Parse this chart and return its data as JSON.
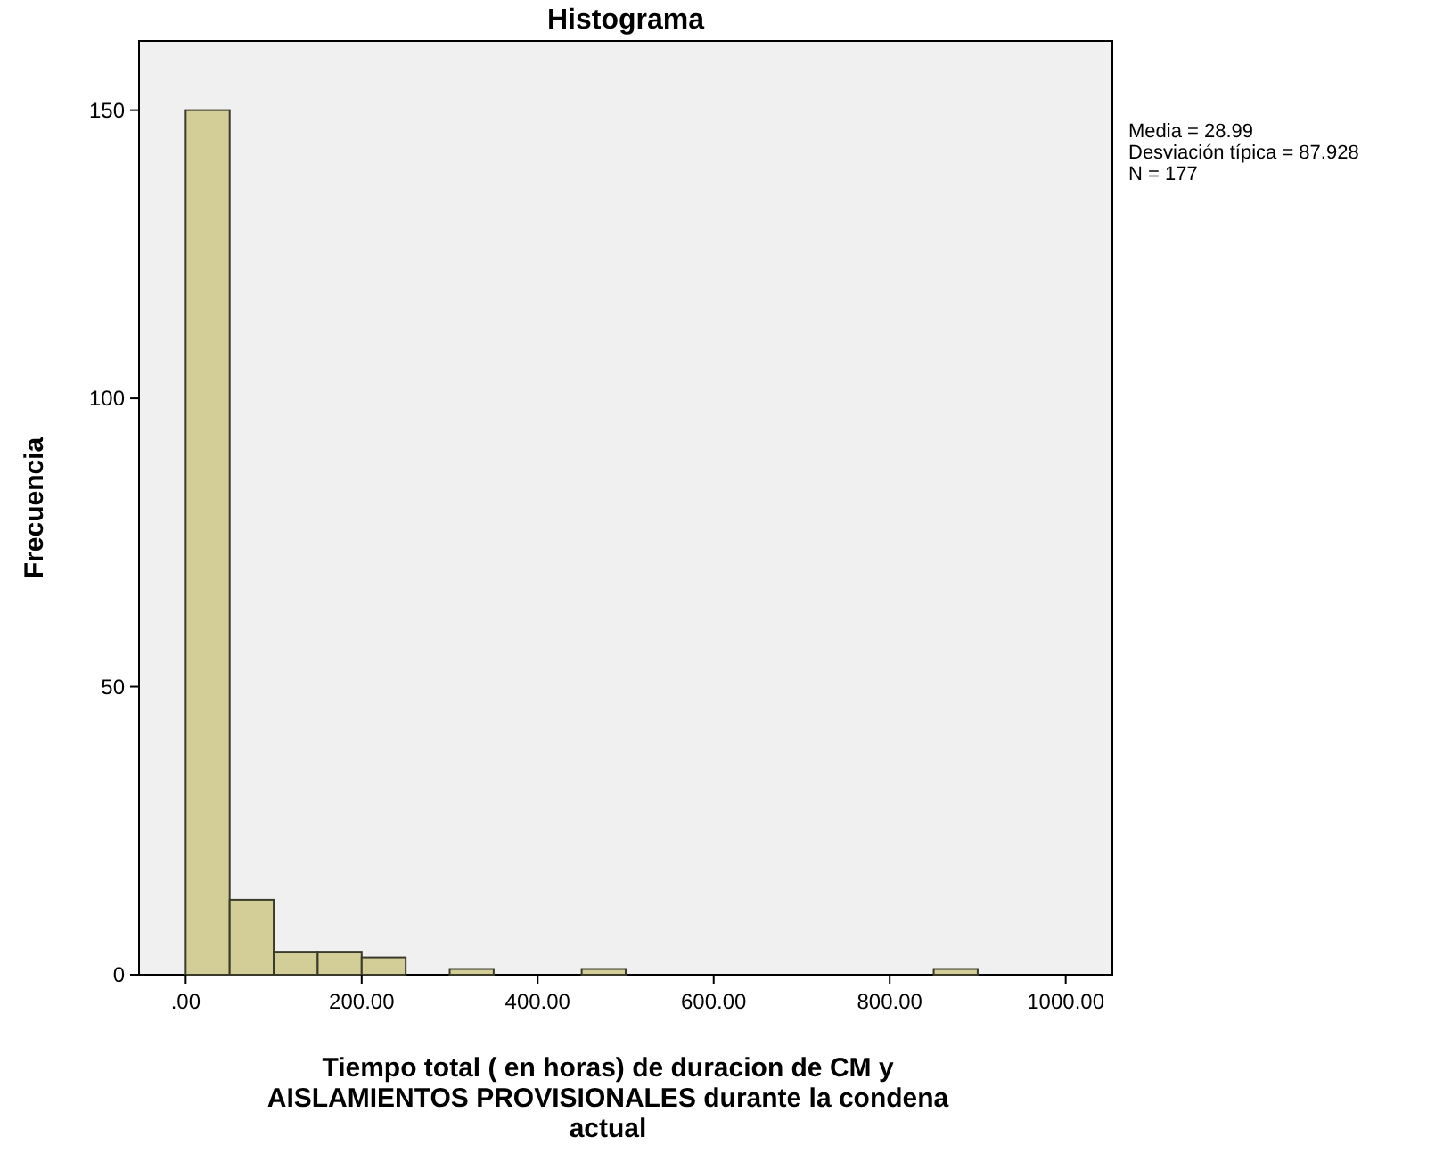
{
  "chart_data": {
    "type": "histogram",
    "title": "Histograma",
    "xlabel": "Tiempo total ( en horas) de duracion de CM y AISLAMIENTOS PROVISIONALES durante la condena actual",
    "ylabel": "Frecuencia",
    "bins": [
      0,
      50,
      100,
      150,
      200,
      250,
      300,
      350,
      400,
      450,
      500,
      550,
      600,
      650,
      700,
      750,
      800,
      850,
      900
    ],
    "values": [
      150,
      13,
      4,
      4,
      3,
      0,
      1,
      0,
      0,
      1,
      0,
      0,
      0,
      0,
      0,
      0,
      0,
      1
    ],
    "color": "#d3ce97",
    "xlim": [
      -53,
      1053
    ],
    "ylim": [
      0,
      162
    ],
    "xticks": [
      {
        "value": 0,
        "label": ".00"
      },
      {
        "value": 200,
        "label": "200.00"
      },
      {
        "value": 400,
        "label": "400.00"
      },
      {
        "value": 600,
        "label": "600.00"
      },
      {
        "value": 800,
        "label": "800.00"
      },
      {
        "value": 1000,
        "label": "1000.00"
      }
    ],
    "yticks": [
      0,
      50,
      100,
      150
    ],
    "grid": false,
    "annotations": [
      "Media = 28.99",
      "Desviación típica = 87.928",
      "N = 177"
    ]
  }
}
